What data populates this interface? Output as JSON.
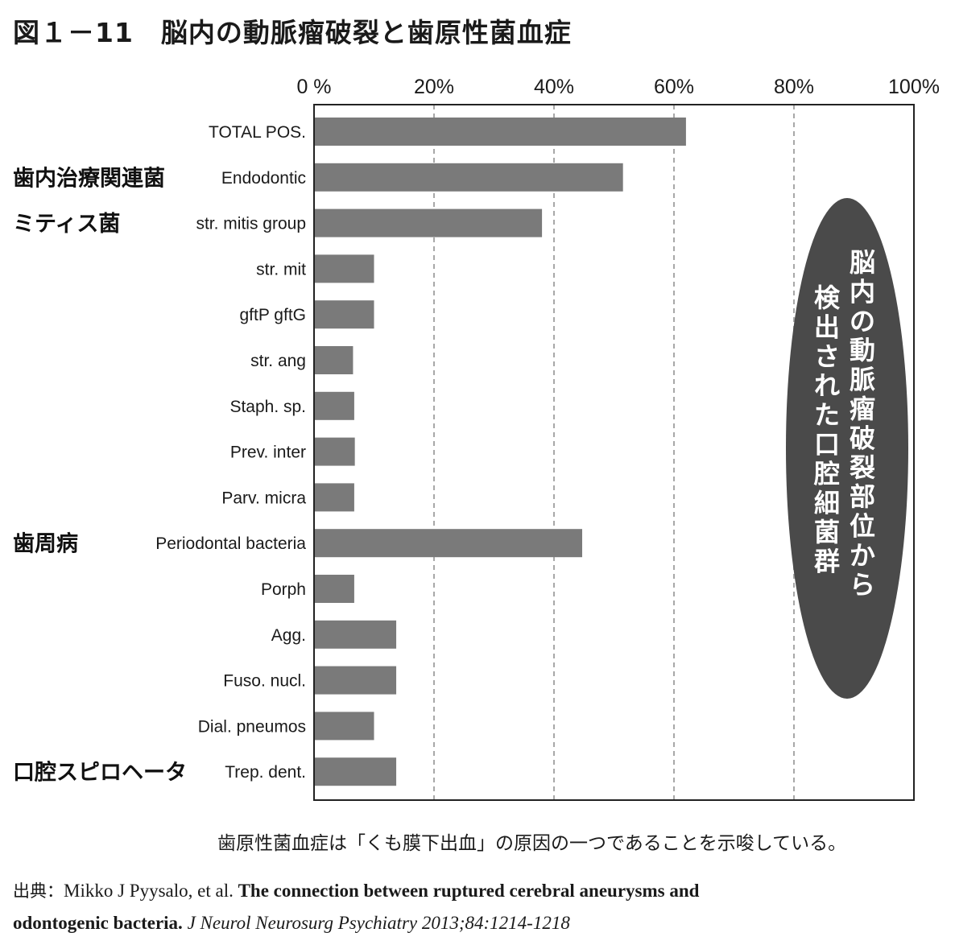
{
  "title": "図１－11　脳内の動脈瘤破裂と歯原性菌血症",
  "chart_data": {
    "type": "bar",
    "orientation": "horizontal",
    "x_axis_position": "top",
    "xlim": [
      0,
      100
    ],
    "x_ticks": [
      "0 %",
      "20%",
      "40%",
      "60%",
      "80%",
      "100%"
    ],
    "grid": "dashed vertical",
    "categories": [
      "TOTAL POS.",
      "Endodontic",
      "str. mitis group",
      "str. mit",
      "gftP gftG",
      "str. ang",
      "Staph. sp.",
      "Prev. inter",
      "Parv. micra",
      "Periodontal bacteria",
      "Porph",
      "Agg.",
      "Fuso. nucl.",
      "Dial. pneumos",
      "Trep. dent."
    ],
    "values": [
      62,
      51.5,
      38,
      10,
      10,
      6.5,
      6.7,
      6.8,
      6.7,
      44.7,
      6.7,
      13.7,
      13.7,
      10,
      13.7
    ],
    "groups": [
      {
        "label": "歯内治療関連菌",
        "category_index": 1
      },
      {
        "label": "ミティス菌",
        "category_index": 2
      },
      {
        "label": "歯周病",
        "category_index": 9
      },
      {
        "label": "口腔スピロヘータ",
        "category_index": 14
      }
    ],
    "annotation": {
      "lines": [
        "脳内の動脈瘤破裂部位から",
        "検出された口腔細菌群"
      ],
      "fill": "#4a4a4a",
      "text_color": "#ffffff"
    }
  },
  "note": "歯原性菌血症は「くも膜下出血」の原因の一つであることを示唆している。",
  "source": {
    "lead": "出典：",
    "authors": "Mikko J Pyysalo, et al. ",
    "title_part1": "The connection between ruptured cerebral aneurysms and",
    "title_part2": "odontogenic bacteria.",
    "journal": " J Neurol Neurosurg Psychiatry 2013;84:1214-1218"
  },
  "colors": {
    "bar": "#7a7a7a",
    "grid": "#a8a8a8",
    "frame": "#222222",
    "ellipse": "#4a4a4a"
  }
}
